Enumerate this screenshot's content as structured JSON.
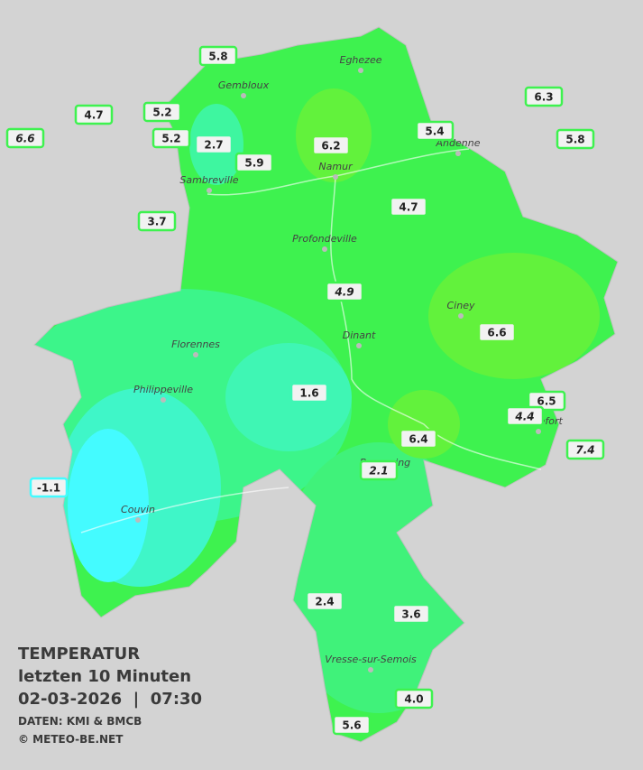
{
  "header": {
    "title": "TEMPERATUR",
    "subtitle": "letzten 10 Minuten",
    "datetime": "02-03-2026  |  07:30",
    "source": "DATEN: KMI & BMCB",
    "copyright": "© METEO-BE.NET"
  },
  "cities": [
    "Eghezee",
    "Gembloux",
    "Andenne",
    "Namur",
    "Sambreville",
    "Profondeville",
    "Ciney",
    "Florennes",
    "Dinant",
    "Philippeville",
    "Beauraing",
    "Rochefort",
    "Couvin",
    "Vresse-sur-Semois"
  ],
  "stations": [
    {
      "value": "5.8"
    },
    {
      "value": "4.7"
    },
    {
      "value": "5.2"
    },
    {
      "value": "6.6",
      "italic": true
    },
    {
      "value": "5.2"
    },
    {
      "value": "2.7"
    },
    {
      "value": "5.9"
    },
    {
      "value": "6.2"
    },
    {
      "value": "5.4"
    },
    {
      "value": "6.3"
    },
    {
      "value": "5.8"
    },
    {
      "value": "3.7"
    },
    {
      "value": "4.7"
    },
    {
      "value": "4.9",
      "italic": true
    },
    {
      "value": "6.6"
    },
    {
      "value": "1.6"
    },
    {
      "value": "6.5"
    },
    {
      "value": "4.4",
      "italic": true
    },
    {
      "value": "7.4",
      "italic": true
    },
    {
      "value": "6.4"
    },
    {
      "value": "2.1",
      "italic": true
    },
    {
      "value": "-1.1"
    },
    {
      "value": "2.4"
    },
    {
      "value": "3.6"
    },
    {
      "value": "4.0"
    },
    {
      "value": "5.6"
    }
  ]
}
